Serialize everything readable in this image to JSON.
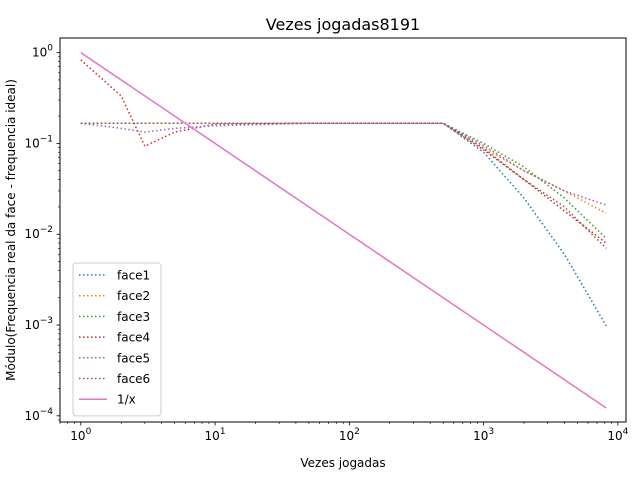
{
  "chart_data": {
    "type": "line",
    "title": "Vezes jogadas8191",
    "xlabel": "Vezes jogadas",
    "ylabel": "Módulo(Frequencia real da face - frequencia ideal)",
    "xscale": "log",
    "yscale": "log",
    "xlim": [
      0.7,
      11500
    ],
    "ylim": [
      8.55e-05,
      1.45
    ],
    "x_ticks": [
      {
        "value": 1,
        "base": "10",
        "exp": "0"
      },
      {
        "value": 10,
        "base": "10",
        "exp": "1"
      },
      {
        "value": 100,
        "base": "10",
        "exp": "2"
      },
      {
        "value": 1000,
        "base": "10",
        "exp": "3"
      },
      {
        "value": 10000,
        "base": "10",
        "exp": "4"
      }
    ],
    "y_ticks": [
      {
        "value": 1,
        "base": "10",
        "exp": "0"
      },
      {
        "value": 0.1,
        "base": "10",
        "exp": "−1"
      },
      {
        "value": 0.01,
        "base": "10",
        "exp": "−2"
      },
      {
        "value": 0.001,
        "base": "10",
        "exp": "−3"
      },
      {
        "value": 0.0001,
        "base": "10",
        "exp": "−4"
      }
    ],
    "grid": false,
    "legend_position": "lower-left",
    "series": [
      {
        "name": "face1",
        "color": "#1f77b4",
        "style": "dotted",
        "x": [
          1,
          2,
          3,
          5,
          10,
          50,
          100,
          500,
          1000,
          2000,
          4000,
          8191
        ],
        "y": [
          0.1667,
          0.1667,
          0.1667,
          0.1667,
          0.1667,
          0.1667,
          0.1667,
          0.1667,
          0.08,
          0.025,
          0.006,
          0.00098
        ]
      },
      {
        "name": "face2",
        "color": "#ff7f0e",
        "style": "dotted",
        "x": [
          1,
          2,
          3,
          5,
          10,
          50,
          100,
          500,
          1000,
          2000,
          4000,
          8191
        ],
        "y": [
          0.1667,
          0.1667,
          0.1667,
          0.1667,
          0.1667,
          0.1667,
          0.1667,
          0.1667,
          0.09,
          0.05,
          0.03,
          0.017
        ]
      },
      {
        "name": "face3",
        "color": "#2ca02c",
        "style": "dotted",
        "x": [
          1,
          2,
          3,
          5,
          10,
          50,
          100,
          500,
          1000,
          2000,
          4000,
          8191
        ],
        "y": [
          0.1667,
          0.1667,
          0.1667,
          0.1667,
          0.1667,
          0.1667,
          0.1667,
          0.1667,
          0.1,
          0.055,
          0.025,
          0.009
        ]
      },
      {
        "name": "face4",
        "color": "#d62728",
        "style": "dotted",
        "x": [
          1,
          2,
          3,
          5,
          10,
          50,
          100,
          500,
          1000,
          2000,
          4000,
          8191
        ],
        "y": [
          0.833,
          0.333,
          0.0933,
          0.1333,
          0.1633,
          0.1667,
          0.1667,
          0.1667,
          0.085,
          0.04,
          0.018,
          0.008
        ]
      },
      {
        "name": "face5",
        "color": "#9467bd",
        "style": "dotted",
        "x": [
          1,
          2,
          3,
          5,
          10,
          50,
          100,
          500,
          1000,
          2000,
          4000,
          8191
        ],
        "y": [
          0.1667,
          0.1467,
          0.1333,
          0.1467,
          0.1567,
          0.1667,
          0.1667,
          0.1667,
          0.095,
          0.05,
          0.03,
          0.021
        ]
      },
      {
        "name": "face6",
        "color": "#8c564b",
        "style": "dotted",
        "x": [
          1,
          2,
          3,
          5,
          10,
          50,
          100,
          500,
          1000,
          2000,
          4000,
          8191
        ],
        "y": [
          0.1667,
          0.1667,
          0.1667,
          0.1667,
          0.1667,
          0.1667,
          0.1667,
          0.1667,
          0.088,
          0.04,
          0.02,
          0.007
        ]
      },
      {
        "name": "1/x",
        "color": "#e377c2",
        "style": "solid",
        "x": [
          1,
          8191
        ],
        "y": [
          1,
          0.000122
        ]
      }
    ]
  }
}
